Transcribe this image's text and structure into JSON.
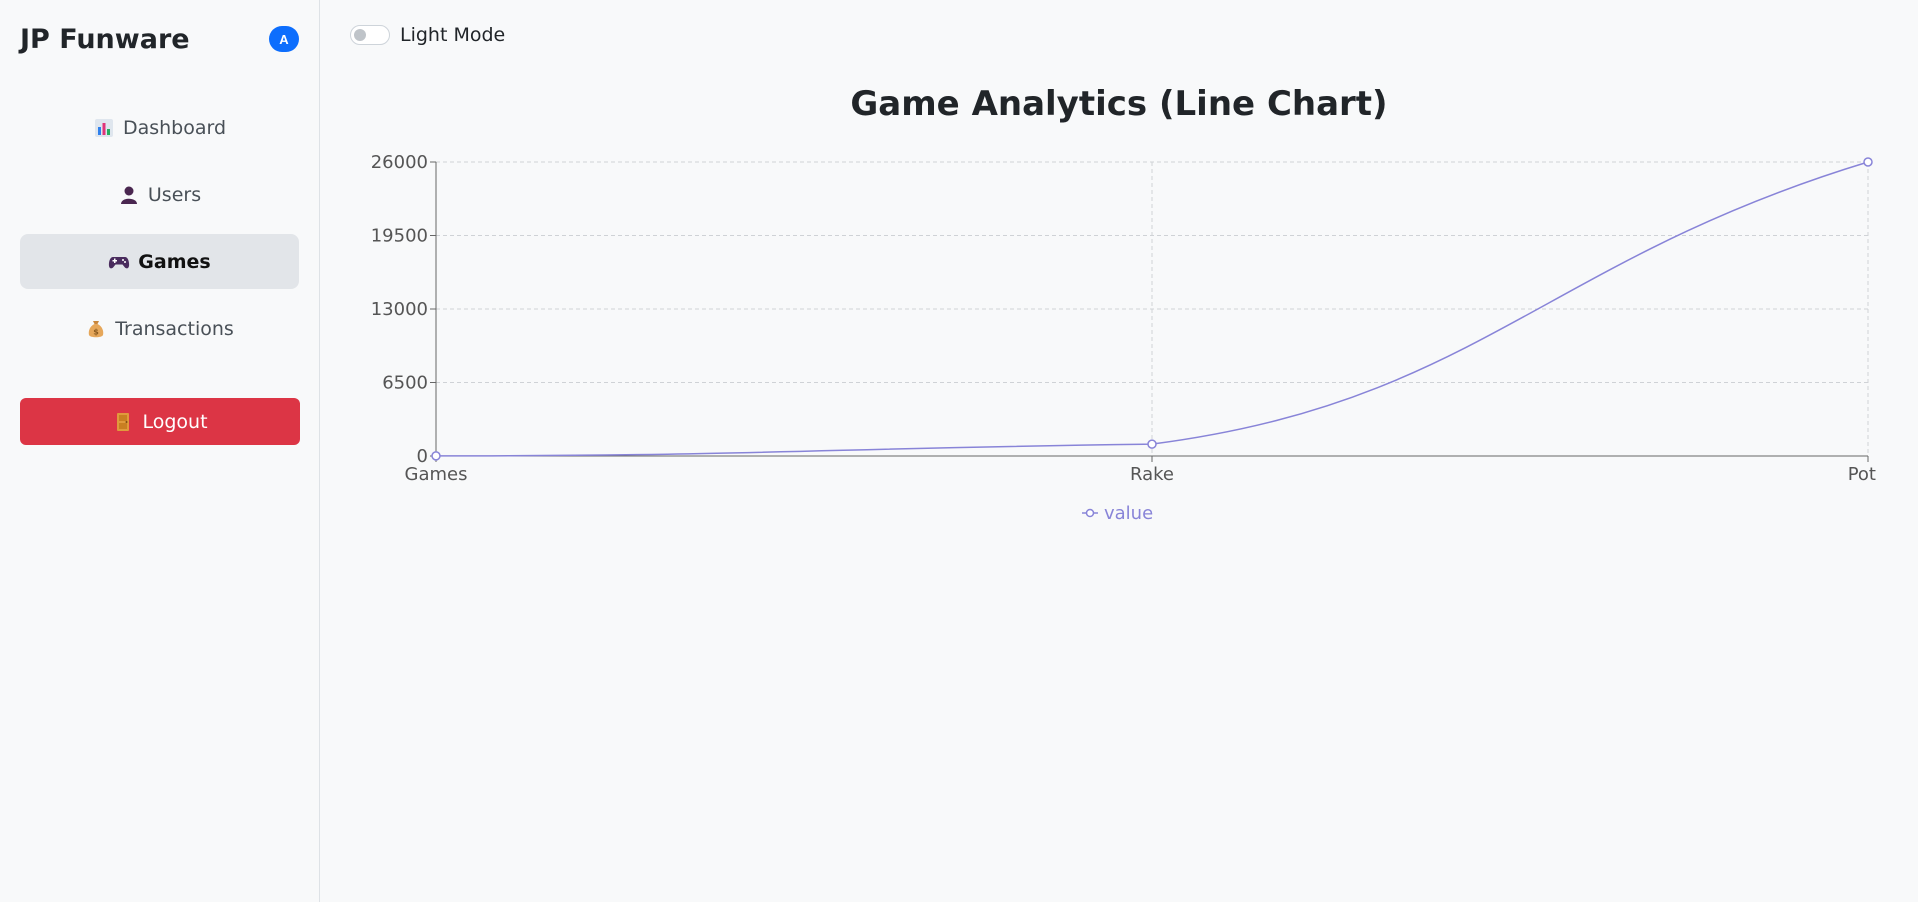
{
  "sidebar": {
    "brand": "JP Funware",
    "avatar_letter": "A",
    "items": [
      {
        "label": "Dashboard",
        "icon": "bar-chart-icon"
      },
      {
        "label": "Users",
        "icon": "user-icon"
      },
      {
        "label": "Games",
        "icon": "gamepad-icon",
        "active": true
      },
      {
        "label": "Transactions",
        "icon": "money-bag-icon"
      }
    ],
    "logout_label": "Logout",
    "logout_icon": "door-icon"
  },
  "theme_toggle": {
    "label": "Light Mode",
    "on": false
  },
  "colors": {
    "accent": "#0d6efd",
    "danger": "#dc3545",
    "series": "#8884d8"
  },
  "chart_data": {
    "type": "line",
    "title": "Game Analytics (Line Chart)",
    "categories": [
      "Games",
      "Rake",
      "Pot"
    ],
    "series": [
      {
        "name": "value",
        "values": [
          10,
          1050,
          26000
        ]
      }
    ],
    "yticks": [
      0,
      6500,
      13000,
      19500,
      26000
    ],
    "ylim": [
      0,
      26000
    ],
    "grid": true,
    "legend": "bottom-center"
  }
}
